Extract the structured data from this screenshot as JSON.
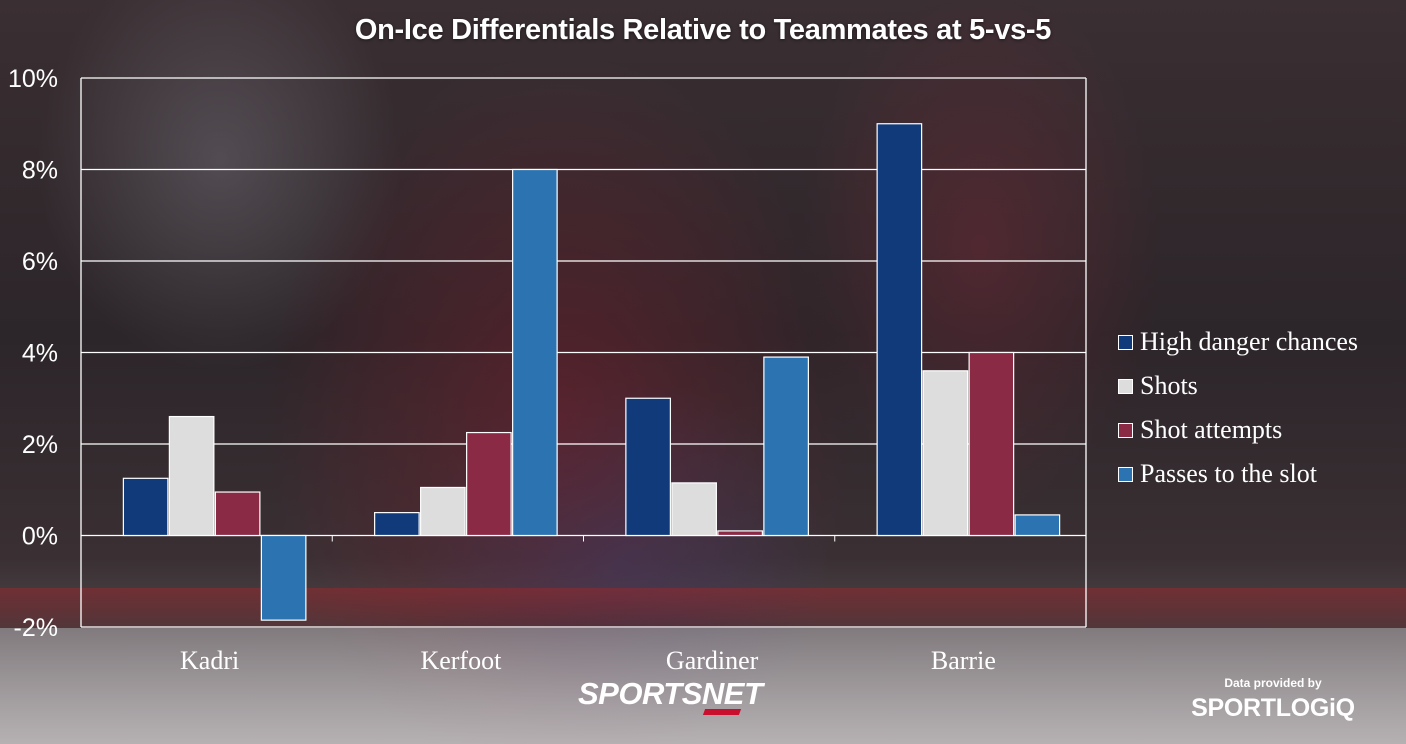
{
  "title": "On-Ice Differentials Relative to Teammates at 5-vs-5",
  "brand": {
    "network": "SPORTSNET",
    "credit_small": "Data provided by",
    "credit_big": "SPORTLOGiQ"
  },
  "colors": {
    "high_danger": "#113a7a",
    "shots": "#dddddd",
    "shot_attempts": "#8a2a45",
    "passes_slot": "#2b74b1",
    "grid": "#ffffff",
    "text": "#ffffff"
  },
  "chart_data": {
    "type": "bar",
    "title": "On-Ice Differentials Relative to Teammates at 5-vs-5",
    "xlabel": "",
    "ylabel": "",
    "categories": [
      "Kadri",
      "Kerfoot",
      "Gardiner",
      "Barrie"
    ],
    "series": [
      {
        "name": "High danger chances",
        "color": "#113a7a",
        "values": [
          1.25,
          0.5,
          3.0,
          9.0
        ]
      },
      {
        "name": "Shots",
        "color": "#dddddd",
        "values": [
          2.6,
          1.05,
          1.15,
          3.6
        ]
      },
      {
        "name": "Shot attempts",
        "color": "#8a2a45",
        "values": [
          0.95,
          2.25,
          0.1,
          4.0
        ]
      },
      {
        "name": "Passes to the slot",
        "color": "#2b74b1",
        "values": [
          -1.85,
          8.0,
          3.9,
          0.45
        ]
      }
    ],
    "ylim": [
      -2,
      10
    ],
    "yticks": [
      -2,
      0,
      2,
      4,
      6,
      8,
      10
    ],
    "ytick_labels": [
      "-2%",
      "0%",
      "2%",
      "4%",
      "6%",
      "8%",
      "10%"
    ],
    "grid": true,
    "legend_position": "right"
  }
}
